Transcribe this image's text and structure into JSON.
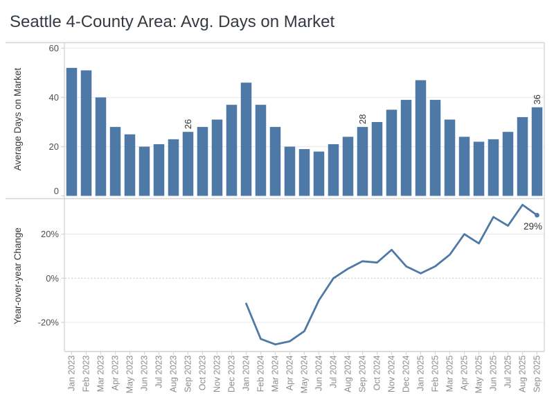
{
  "title": "Seattle 4-County Area: Avg. Days on Market",
  "colors": {
    "bar": "#4e79a7",
    "line": "#4e79a7",
    "title_text": "#333a42",
    "axis_text": "#4f4f4f",
    "axis_title_text": "#3a3a3a",
    "month_text": "#8c8c8c",
    "label_text": "#333333",
    "grid": "#ececec",
    "grid_dot": "#c6c6c6",
    "border": "#d4d4d4"
  },
  "chart_data": [
    {
      "type": "bar",
      "title": "Seattle 4-County Area: Avg. Days on Market",
      "ylabel": "Average Days on Market",
      "xlabel": "",
      "categories": [
        "Jan 2023",
        "Feb 2023",
        "Mar 2023",
        "Apr 2023",
        "May 2023",
        "Jun 2023",
        "Jul 2023",
        "Aug 2023",
        "Sep 2023",
        "Oct 2023",
        "Nov 2023",
        "Dec 2023",
        "Jan 2024",
        "Feb 2024",
        "Mar 2024",
        "Apr 2024",
        "May 2024",
        "Jun 2024",
        "Jul 2024",
        "Aug 2024",
        "Sep 2024",
        "Oct 2024",
        "Nov 2024",
        "Dec 2024",
        "Jan 2025",
        "Feb 2025",
        "Mar 2025",
        "Apr 2025",
        "May 2025",
        "Jun 2025",
        "Jul 2025",
        "Aug 2025",
        "Sep 2025"
      ],
      "values": [
        52,
        51,
        40,
        28,
        25,
        20,
        21,
        23,
        26,
        28,
        31,
        37,
        46,
        37,
        28,
        20,
        19,
        18,
        21,
        24,
        28,
        30,
        35,
        39,
        47,
        39,
        31,
        24,
        22,
        23,
        26,
        32,
        36
      ],
      "yticks": [
        0,
        20,
        40,
        60
      ],
      "ylim": [
        0,
        62
      ],
      "grid": true,
      "legend": "none",
      "point_labels": [
        {
          "category": "Sep 2023",
          "label": "26"
        },
        {
          "category": "Sep 2024",
          "label": "28"
        },
        {
          "category": "Sep 2025",
          "label": "36"
        }
      ]
    },
    {
      "type": "line",
      "title": "",
      "ylabel": "Year-over-year Change",
      "xlabel": "",
      "categories": [
        "Jan 2023",
        "Feb 2023",
        "Mar 2023",
        "Apr 2023",
        "May 2023",
        "Jun 2023",
        "Jul 2023",
        "Aug 2023",
        "Sep 2023",
        "Oct 2023",
        "Nov 2023",
        "Dec 2023",
        "Jan 2024",
        "Feb 2024",
        "Mar 2024",
        "Apr 2024",
        "May 2024",
        "Jun 2024",
        "Jul 2024",
        "Aug 2024",
        "Sep 2024",
        "Oct 2024",
        "Nov 2024",
        "Dec 2024",
        "Jan 2025",
        "Feb 2025",
        "Mar 2025",
        "Apr 2025",
        "May 2025",
        "Jun 2025",
        "Jul 2025",
        "Aug 2025",
        "Sep 2025"
      ],
      "start_index": 12,
      "values": [
        -11.5,
        -27.5,
        -30,
        -28.6,
        -24,
        -10,
        0,
        4.3,
        7.7,
        7.1,
        12.9,
        5.4,
        2.2,
        5.4,
        10.7,
        20,
        15.8,
        27.8,
        23.8,
        33.3,
        28.6
      ],
      "unit": "%",
      "yticks": [
        20,
        0,
        -20
      ],
      "ylim": [
        -33,
        35
      ],
      "grid": true,
      "legend": "none",
      "zero_line": "dotted",
      "end_label": "29%"
    }
  ]
}
